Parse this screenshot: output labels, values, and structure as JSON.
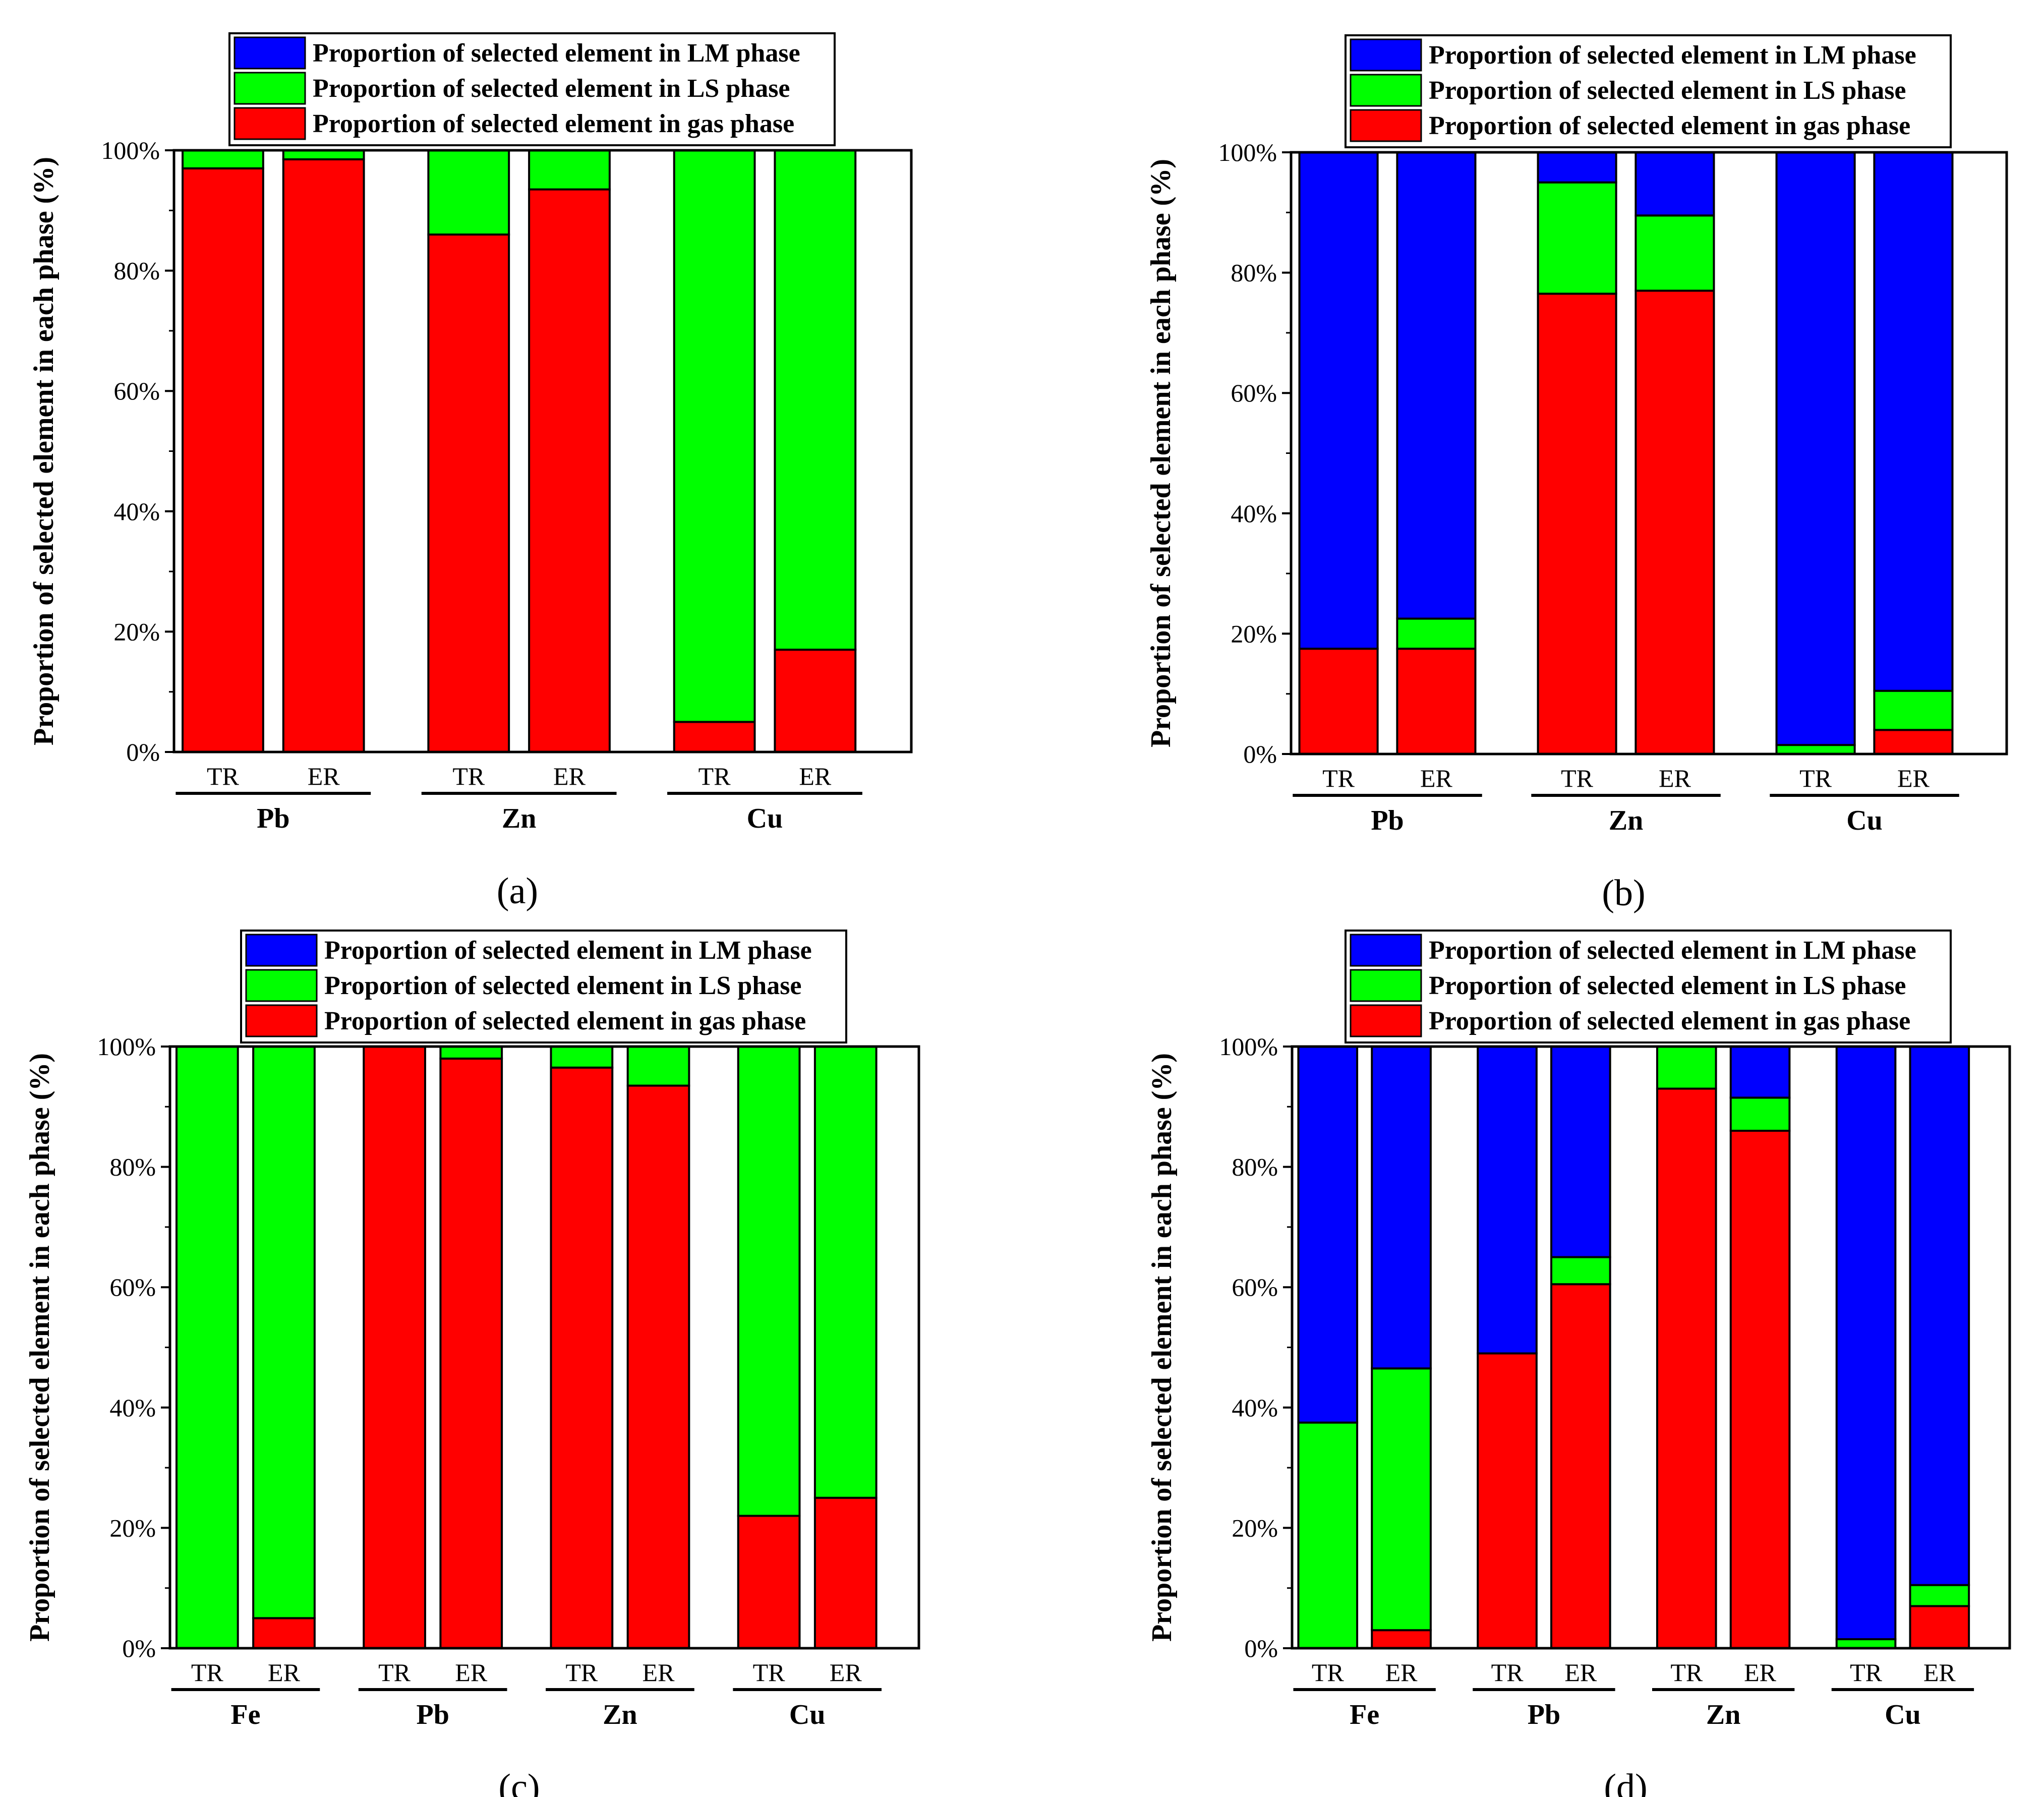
{
  "colors": {
    "lm": "#0000ff",
    "ls": "#00ff00",
    "gas": "#ff0000"
  },
  "legend": {
    "lm": "Proportion of selected element in LM phase",
    "ls": "Proportion of selected element in LS phase",
    "gas": "Proportion of selected element in gas phase"
  },
  "chart_data": [
    {
      "type": "bar",
      "stacked": true,
      "caption": "(a)",
      "ylabel": "Proportion of selected element in each phase (%)",
      "ylim": [
        0,
        100
      ],
      "yticks": [
        "0%",
        "20%",
        "40%",
        "60%",
        "80%",
        "100%"
      ],
      "groups": [
        {
          "element": "Pb",
          "bars": [
            {
              "label": "TR",
              "gas": 97,
              "ls": 3,
              "lm": 0
            },
            {
              "label": "ER",
              "gas": 98.5,
              "ls": 1.5,
              "lm": 0
            }
          ]
        },
        {
          "element": "Zn",
          "bars": [
            {
              "label": "TR",
              "gas": 86,
              "ls": 14,
              "lm": 0
            },
            {
              "label": "ER",
              "gas": 93.5,
              "ls": 6.5,
              "lm": 0
            }
          ]
        },
        {
          "element": "Cu",
          "bars": [
            {
              "label": "TR",
              "gas": 5,
              "ls": 95,
              "lm": 0
            },
            {
              "label": "ER",
              "gas": 17,
              "ls": 83,
              "lm": 0
            }
          ]
        }
      ]
    },
    {
      "type": "bar",
      "stacked": true,
      "caption": "(b)",
      "ylabel": "Proportion of selected element in each phase (%)",
      "ylim": [
        0,
        100
      ],
      "yticks": [
        "0%",
        "20%",
        "40%",
        "60%",
        "80%",
        "100%"
      ],
      "groups": [
        {
          "element": "Pb",
          "bars": [
            {
              "label": "TR",
              "gas": 17.5,
              "ls": 0,
              "lm": 82.5
            },
            {
              "label": "ER",
              "gas": 17.5,
              "ls": 5,
              "lm": 77.5
            }
          ]
        },
        {
          "element": "Zn",
          "bars": [
            {
              "label": "TR",
              "gas": 76.5,
              "ls": 18.5,
              "lm": 5
            },
            {
              "label": "ER",
              "gas": 77,
              "ls": 12.5,
              "lm": 10.5
            }
          ]
        },
        {
          "element": "Cu",
          "bars": [
            {
              "label": "TR",
              "gas": 0,
              "ls": 1.5,
              "lm": 98.5
            },
            {
              "label": "ER",
              "gas": 4,
              "ls": 6.5,
              "lm": 89.5
            }
          ]
        }
      ]
    },
    {
      "type": "bar",
      "stacked": true,
      "caption": "(c)",
      "ylabel": "Proportion of selected element in each phase (%)",
      "ylim": [
        0,
        100
      ],
      "yticks": [
        "0%",
        "20%",
        "40%",
        "60%",
        "80%",
        "100%"
      ],
      "groups": [
        {
          "element": "Fe",
          "bars": [
            {
              "label": "TR",
              "gas": 0,
              "ls": 100,
              "lm": 0
            },
            {
              "label": "ER",
              "gas": 5,
              "ls": 95,
              "lm": 0
            }
          ]
        },
        {
          "element": "Pb",
          "bars": [
            {
              "label": "TR",
              "gas": 100,
              "ls": 0,
              "lm": 0
            },
            {
              "label": "ER",
              "gas": 98,
              "ls": 2,
              "lm": 0
            }
          ]
        },
        {
          "element": "Zn",
          "bars": [
            {
              "label": "TR",
              "gas": 96.5,
              "ls": 3.5,
              "lm": 0
            },
            {
              "label": "ER",
              "gas": 93.5,
              "ls": 6.5,
              "lm": 0
            }
          ]
        },
        {
          "element": "Cu",
          "bars": [
            {
              "label": "TR",
              "gas": 22,
              "ls": 78,
              "lm": 0
            },
            {
              "label": "ER",
              "gas": 25,
              "ls": 75,
              "lm": 0
            }
          ]
        }
      ]
    },
    {
      "type": "bar",
      "stacked": true,
      "caption": "(d)",
      "ylabel": "Proportion of selected element in each phase (%)",
      "ylim": [
        0,
        100
      ],
      "yticks": [
        "0%",
        "20%",
        "40%",
        "60%",
        "80%",
        "100%"
      ],
      "groups": [
        {
          "element": "Fe",
          "bars": [
            {
              "label": "TR",
              "gas": 0,
              "ls": 37.5,
              "lm": 62.5
            },
            {
              "label": "ER",
              "gas": 3,
              "ls": 43.5,
              "lm": 53.5
            }
          ]
        },
        {
          "element": "Pb",
          "bars": [
            {
              "label": "TR",
              "gas": 49,
              "ls": 0,
              "lm": 51
            },
            {
              "label": "ER",
              "gas": 60.5,
              "ls": 4.5,
              "lm": 35
            }
          ]
        },
        {
          "element": "Zn",
          "bars": [
            {
              "label": "TR",
              "gas": 93,
              "ls": 7,
              "lm": 0
            },
            {
              "label": "ER",
              "gas": 86,
              "ls": 5.5,
              "lm": 8.5
            }
          ]
        },
        {
          "element": "Cu",
          "bars": [
            {
              "label": "TR",
              "gas": 0,
              "ls": 1.5,
              "lm": 98.5
            },
            {
              "label": "ER",
              "gas": 7,
              "ls": 3.5,
              "lm": 89.5
            }
          ]
        }
      ]
    }
  ]
}
